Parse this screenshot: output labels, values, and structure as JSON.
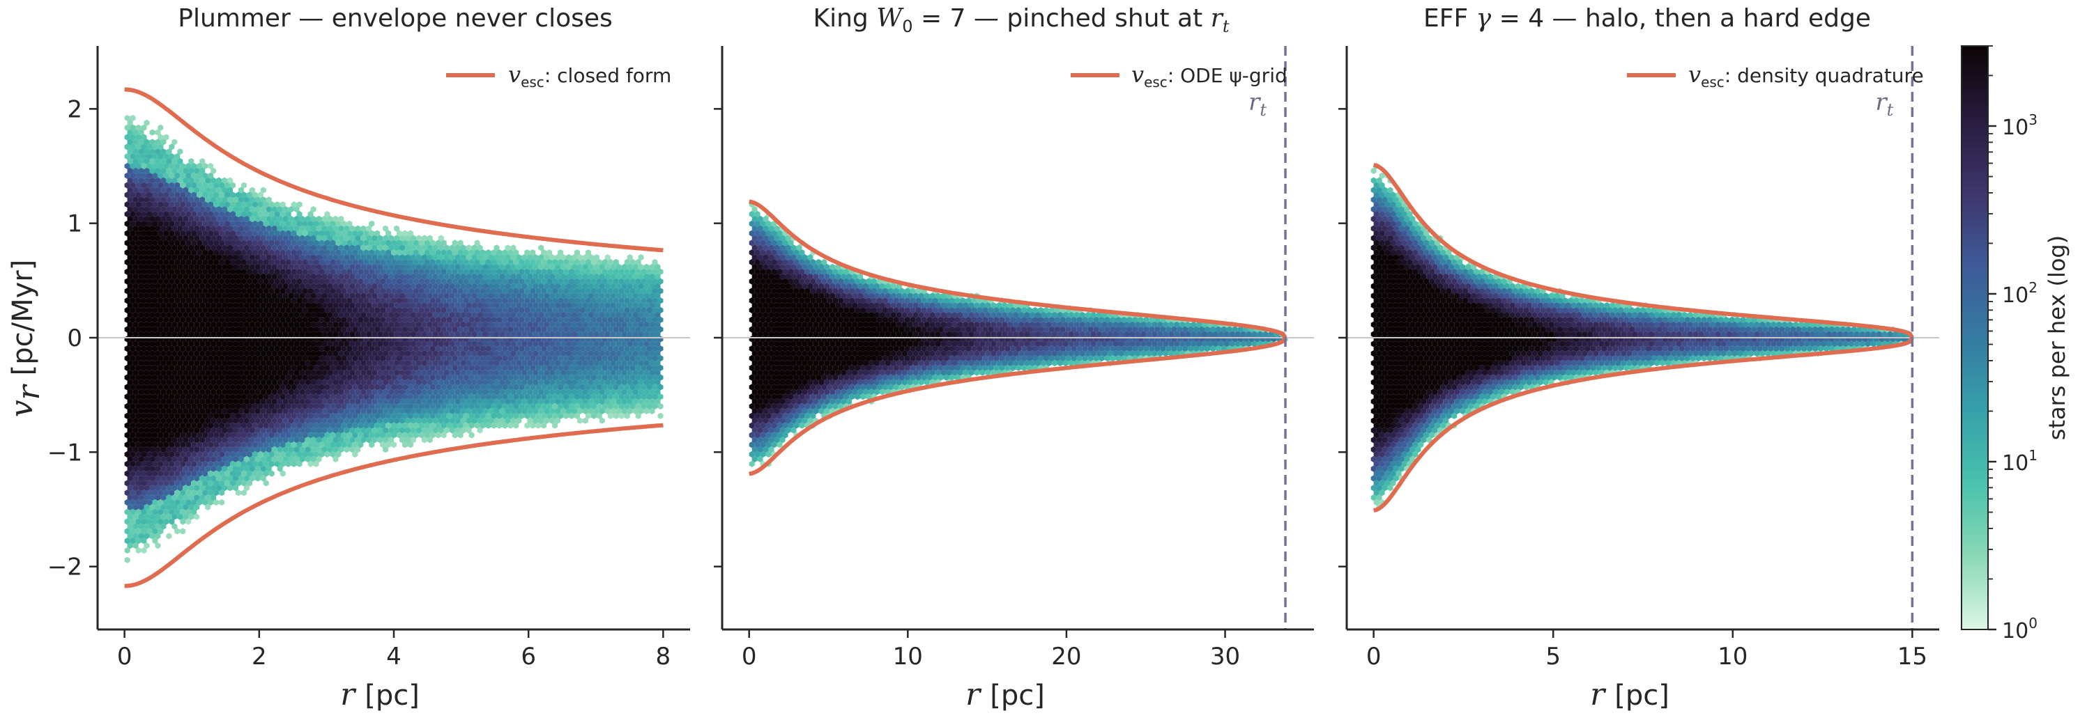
{
  "chart_data": [
    {
      "type": "hexbin",
      "title": "Plummer — envelope never closes",
      "title_parts": [
        "Plummer — envelope never closes"
      ],
      "xlabel": "r  [pc]",
      "ylabel": "v_r  [pc/Myr]",
      "xlim": [
        -0.4,
        8.4
      ],
      "ylim": [
        -2.55,
        2.55
      ],
      "xticks": [
        0,
        2,
        4,
        6,
        8
      ],
      "yticks": [
        -2,
        -1,
        0,
        1,
        2
      ],
      "yticklabels": [
        "−2",
        "−1",
        "0",
        "1",
        "2"
      ],
      "legend": {
        "label": "v_esc: closed form",
        "prefix": "v",
        "sub": "esc",
        "suffix": ": closed form",
        "placement": "top-right"
      },
      "envelope": {
        "model": "plummer",
        "vmax_at_center": 2.17,
        "scale_radius": 1.0,
        "r_max": 8.0,
        "color": "#e06c50"
      },
      "density_extent": {
        "r_max": 8.0,
        "v_max_at_center": 1.88
      },
      "truncation_radius": null
    },
    {
      "type": "hexbin",
      "title": "King W_0 = 7 — pinched shut at r_t",
      "title_parts": [
        "King ",
        "W",
        "0",
        " = 7 — pinched shut at ",
        "r",
        "t"
      ],
      "xlabel": "r  [pc]",
      "xlim": [
        -1.7,
        35.6
      ],
      "ylim": [
        -2.55,
        2.55
      ],
      "xticks": [
        0,
        10,
        20,
        30
      ],
      "yticks": [
        -2,
        -1,
        0,
        1,
        2
      ],
      "legend": {
        "label": "v_esc: ODE ψ-grid",
        "prefix": "v",
        "sub": "esc",
        "suffix": ": ODE ψ-grid",
        "placement": "top-right"
      },
      "envelope": {
        "model": "king",
        "vmax_at_center": 1.19,
        "core_radius": 2.1,
        "r_max": 33.8,
        "color": "#e06c50"
      },
      "truncation_radius": 33.8,
      "truncation_label": "r_t"
    },
    {
      "type": "hexbin",
      "title": "EFF γ = 4 — halo, then a hard edge",
      "title_parts": [
        "EFF ",
        "γ",
        " = 4 — halo, then a hard edge"
      ],
      "xlabel": "r  [pc]",
      "xlim": [
        -0.75,
        15.75
      ],
      "ylim": [
        -2.55,
        2.55
      ],
      "xticks": [
        0,
        5,
        10,
        15
      ],
      "yticks": [
        -2,
        -1,
        0,
        1,
        2
      ],
      "legend": {
        "label": "v_esc: density quadrature",
        "prefix": "v",
        "sub": "esc",
        "suffix": ": density quadrature",
        "placement": "top-right"
      },
      "envelope": {
        "model": "eff",
        "vmax_at_center": 1.51,
        "core_radius": 1.0,
        "r_max": 15.0,
        "color": "#e06c50"
      },
      "truncation_radius": 15.0,
      "truncation_label": "r_t"
    }
  ],
  "colorbar": {
    "label": "stars per hex (log)",
    "scale": "log",
    "range": [
      1,
      3000
    ],
    "ticks": [
      {
        "base": "10",
        "exp": "0",
        "value": 1
      },
      {
        "base": "10",
        "exp": "1",
        "value": 10
      },
      {
        "base": "10",
        "exp": "2",
        "value": 100
      },
      {
        "base": "10",
        "exp": "3",
        "value": 1000
      }
    ],
    "colormap_stops": [
      "#def5e5",
      "#8ad8b6",
      "#4ac2ad",
      "#36a0aa",
      "#357ba2",
      "#3e5a98",
      "#3e356b",
      "#271b3e",
      "#0b0405"
    ]
  }
}
